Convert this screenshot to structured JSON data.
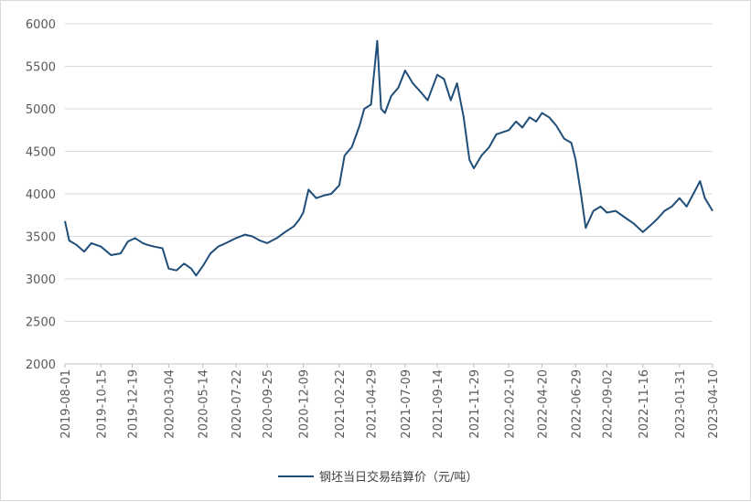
{
  "chart_data": {
    "type": "line",
    "title": "",
    "xlabel": "",
    "ylabel": "",
    "ylim": [
      2000,
      6000
    ],
    "y_ticks": [
      2000,
      2500,
      3000,
      3500,
      4000,
      4500,
      5000,
      5500,
      6000
    ],
    "x_tick_labels": [
      "2019-08-01",
      "2019-10-15",
      "2019-12-19",
      "2020-03-04",
      "2020-05-14",
      "2020-07-22",
      "2020-09-25",
      "2020-12-09",
      "2021-02-22",
      "2021-04-29",
      "2021-07-09",
      "2021-09-14",
      "2021-11-29",
      "2022-02-10",
      "2022-04-20",
      "2022-06-29",
      "2022-09-02",
      "2022-11-16",
      "2023-01-31",
      "2023-04-10"
    ],
    "grid": "horizontal",
    "legend_position": "bottom",
    "line_color": "#1f4e79",
    "series": [
      {
        "name": "钢坯当日交易结算价（元/吨）",
        "x": [
          "2019-08-01",
          "2019-08-10",
          "2019-08-25",
          "2019-09-10",
          "2019-09-25",
          "2019-10-15",
          "2019-11-05",
          "2019-11-25",
          "2019-12-10",
          "2019-12-25",
          "2020-01-10",
          "2020-01-20",
          "2020-02-03",
          "2020-02-20",
          "2020-03-04",
          "2020-03-20",
          "2020-04-05",
          "2020-04-20",
          "2020-04-30",
          "2020-05-14",
          "2020-05-30",
          "2020-06-15",
          "2020-07-01",
          "2020-07-22",
          "2020-08-10",
          "2020-08-25",
          "2020-09-10",
          "2020-09-25",
          "2020-10-15",
          "2020-11-01",
          "2020-11-20",
          "2020-12-01",
          "2020-12-09",
          "2020-12-20",
          "2021-01-05",
          "2021-01-20",
          "2021-02-05",
          "2021-02-22",
          "2021-03-05",
          "2021-03-20",
          "2021-04-05",
          "2021-04-15",
          "2021-04-29",
          "2021-05-12",
          "2021-05-20",
          "2021-05-28",
          "2021-06-10",
          "2021-06-25",
          "2021-07-09",
          "2021-07-25",
          "2021-08-10",
          "2021-08-25",
          "2021-09-14",
          "2021-09-28",
          "2021-10-12",
          "2021-10-25",
          "2021-11-08",
          "2021-11-20",
          "2021-11-29",
          "2021-12-15",
          "2021-12-31",
          "2022-01-15",
          "2022-02-10",
          "2022-02-25",
          "2022-03-10",
          "2022-03-25",
          "2022-04-08",
          "2022-04-20",
          "2022-05-05",
          "2022-05-20",
          "2022-06-05",
          "2022-06-20",
          "2022-06-29",
          "2022-07-10",
          "2022-07-20",
          "2022-08-05",
          "2022-08-20",
          "2022-09-02",
          "2022-09-20",
          "2022-10-10",
          "2022-10-28",
          "2022-11-16",
          "2022-11-30",
          "2022-12-15",
          "2022-12-31",
          "2023-01-15",
          "2023-01-31",
          "2023-02-15",
          "2023-03-01",
          "2023-03-15",
          "2023-03-25",
          "2023-04-10"
        ],
        "values": [
          3680,
          3450,
          3400,
          3320,
          3420,
          3380,
          3280,
          3300,
          3440,
          3480,
          3420,
          3400,
          3380,
          3360,
          3120,
          3100,
          3180,
          3120,
          3040,
          3150,
          3300,
          3380,
          3420,
          3480,
          3520,
          3500,
          3450,
          3420,
          3480,
          3550,
          3620,
          3700,
          3780,
          4050,
          3950,
          3980,
          4000,
          4100,
          4450,
          4550,
          4800,
          5000,
          5050,
          5800,
          5000,
          4950,
          5150,
          5250,
          5450,
          5300,
          5200,
          5100,
          5400,
          5350,
          5100,
          5300,
          4900,
          4400,
          4300,
          4450,
          4550,
          4700,
          4750,
          4850,
          4780,
          4900,
          4850,
          4950,
          4900,
          4800,
          4650,
          4600,
          4400,
          4000,
          3600,
          3800,
          3850,
          3780,
          3800,
          3720,
          3650,
          3550,
          3620,
          3700,
          3800,
          3850,
          3950,
          3850,
          4000,
          4150,
          3950,
          3800
        ]
      }
    ]
  }
}
